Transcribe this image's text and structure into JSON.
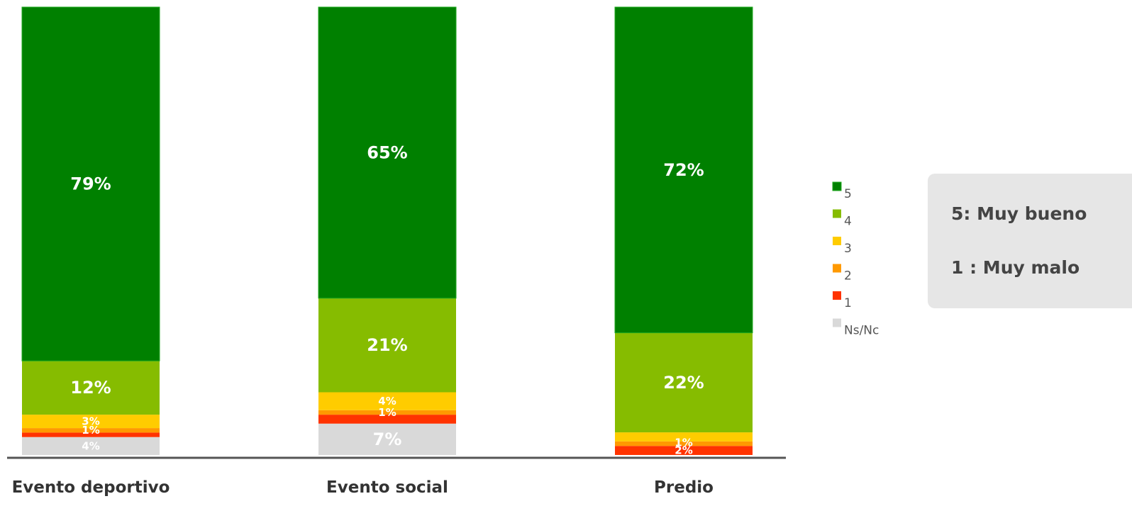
{
  "chart_data": {
    "type": "bar",
    "stacked": true,
    "percent": true,
    "categories": [
      "Evento deportivo",
      "Evento social",
      "Predio"
    ],
    "series": [
      {
        "name": "Ns/Nc",
        "color": "#d9d9d9",
        "values": [
          4,
          7,
          0
        ],
        "labels": [
          "4%",
          "7%",
          ""
        ]
      },
      {
        "name": "1",
        "color": "#ff3300",
        "values": [
          1,
          2,
          2
        ],
        "labels": [
          "",
          "",
          "2%"
        ]
      },
      {
        "name": "2",
        "color": "#ff9900",
        "values": [
          1,
          1,
          1
        ],
        "labels": [
          "1%",
          "1%",
          "1%"
        ]
      },
      {
        "name": "3",
        "color": "#ffcc00",
        "values": [
          3,
          4,
          2
        ],
        "labels": [
          "3%",
          "4%",
          ""
        ]
      },
      {
        "name": "4",
        "color": "#86bc00",
        "values": [
          12,
          21,
          22
        ],
        "labels": [
          "12%",
          "21%",
          "22%"
        ]
      },
      {
        "name": "5",
        "color": "#008000",
        "values": [
          79,
          65,
          72
        ],
        "labels": [
          "79%",
          "65%",
          "72%"
        ]
      }
    ],
    "ylim": [
      0,
      100
    ],
    "grid": false,
    "legend_placement": "right"
  },
  "scale_note": {
    "high_key": "5",
    "high_text": ": Muy bueno",
    "low_key": "1",
    "low_text": " : Muy malo"
  }
}
